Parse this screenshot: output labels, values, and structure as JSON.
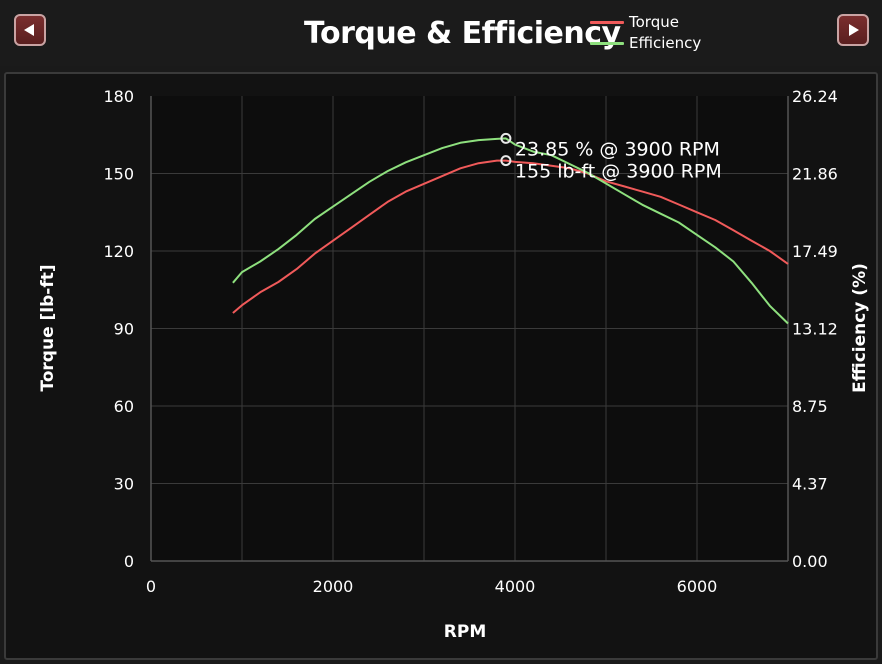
{
  "header": {
    "title": "Torque & Efficiency",
    "prev_icon": "left-triangle-icon",
    "next_icon": "right-triangle-icon"
  },
  "chart_data": {
    "type": "line",
    "title": "Torque & Efficiency",
    "xlabel": "RPM",
    "ylabel_left": "Torque [lb-ft]",
    "ylabel_right": "Efficiency (%)",
    "xlim": [
      0,
      7000
    ],
    "ylim_left": [
      0,
      180
    ],
    "ylim_right": [
      0,
      26.24
    ],
    "x_ticks": [
      "0",
      "2000",
      "4000",
      "6000"
    ],
    "y_ticks_left": [
      "0",
      "30",
      "60",
      "90",
      "120",
      "150",
      "180"
    ],
    "y_ticks_right": [
      "0.00",
      "4.37",
      "8.75",
      "13.12",
      "17.49",
      "21.86",
      "26.24"
    ],
    "grid": true,
    "legend_position": "top-right",
    "series": [
      {
        "name": "Torque",
        "color": "#f05a5a",
        "axis": "left",
        "x": [
          900,
          1000,
          1200,
          1400,
          1600,
          1800,
          2000,
          2200,
          2400,
          2600,
          2800,
          3000,
          3200,
          3400,
          3600,
          3800,
          3900,
          4000,
          4200,
          4400,
          4600,
          4800,
          5000,
          5200,
          5400,
          5600,
          5800,
          6000,
          6200,
          6400,
          6600,
          6800,
          7000
        ],
        "y": [
          96,
          99,
          104,
          108,
          113,
          119,
          124,
          129,
          134,
          139,
          143,
          146,
          149,
          152,
          154,
          155,
          155,
          154.5,
          154,
          153,
          152,
          150,
          147,
          145,
          143,
          141,
          138,
          135,
          132,
          128,
          124,
          120,
          115
        ]
      },
      {
        "name": "Efficiency",
        "color": "#8ee07e",
        "axis": "right",
        "x": [
          900,
          1000,
          1200,
          1400,
          1600,
          1800,
          2000,
          2200,
          2400,
          2600,
          2800,
          3000,
          3200,
          3400,
          3600,
          3800,
          3900,
          4000,
          4200,
          4400,
          4600,
          4800,
          5000,
          5200,
          5400,
          5600,
          5800,
          6000,
          6200,
          6400,
          6600,
          6800,
          7000
        ],
        "y": [
          15.7,
          16.3,
          16.9,
          17.6,
          18.4,
          19.3,
          20.0,
          20.7,
          21.4,
          22.0,
          22.5,
          22.9,
          23.3,
          23.6,
          23.75,
          23.82,
          23.85,
          23.5,
          23.1,
          22.9,
          22.4,
          21.9,
          21.3,
          20.7,
          20.1,
          19.6,
          19.1,
          18.4,
          17.7,
          16.9,
          15.7,
          14.4,
          13.4
        ]
      }
    ],
    "annotations": [
      {
        "series": "Efficiency",
        "x": 3900,
        "y": 23.85,
        "text": "23.85 % @ 3900 RPM"
      },
      {
        "series": "Torque",
        "x": 3900,
        "y": 155,
        "text": "155 lb-ft @ 3900 RPM"
      }
    ]
  }
}
